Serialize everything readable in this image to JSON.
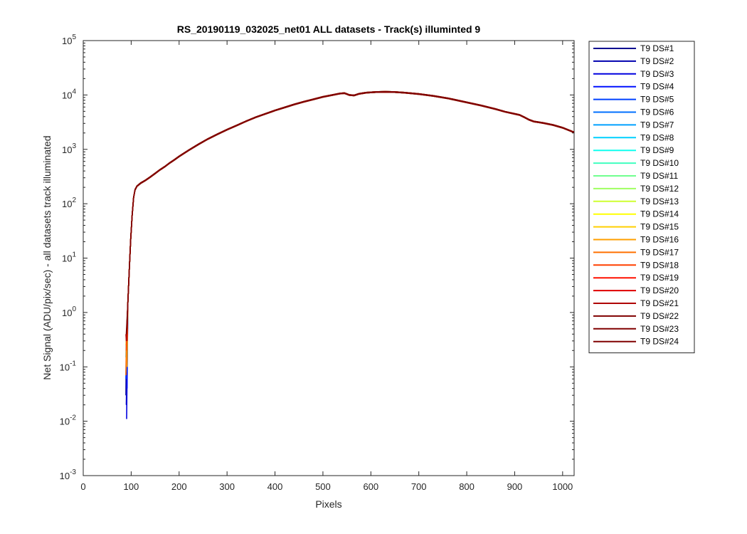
{
  "chart_data": {
    "type": "line",
    "title": "RS_20190119_032025_net01 ALL datasets - Track(s) illuminted 9",
    "xlabel": "Pixels",
    "ylabel": "Net Signal (ADU/pix/sec) - all datasets track illuminated",
    "xlim": [
      0,
      1024
    ],
    "ylim": [
      0.001,
      100000
    ],
    "yscale": "log",
    "grid": false,
    "legend_position": "outside-right",
    "x_ticks": [
      "0",
      "100",
      "200",
      "300",
      "400",
      "500",
      "600",
      "700",
      "800",
      "900",
      "1000"
    ],
    "x_tick_values": [
      0,
      100,
      200,
      300,
      400,
      500,
      600,
      700,
      800,
      900,
      1000
    ],
    "y_tick_exponents": [
      -3,
      -2,
      -1,
      0,
      1,
      2,
      3,
      4,
      5
    ],
    "y_tick_base": "10",
    "common_curve": {
      "x": [
        108,
        112,
        120,
        130,
        140,
        150,
        160,
        170,
        180,
        190,
        200,
        220,
        240,
        260,
        280,
        300,
        320,
        340,
        360,
        380,
        400,
        420,
        440,
        460,
        480,
        500,
        520,
        535,
        545,
        555,
        565,
        575,
        590,
        610,
        630,
        650,
        670,
        700,
        730,
        760,
        800,
        830,
        860,
        880,
        900,
        910,
        920,
        930,
        940,
        950,
        960,
        980,
        1000,
        1010,
        1024
      ],
      "y": [
        180,
        210,
        240,
        270,
        310,
        360,
        420,
        480,
        560,
        640,
        740,
        960,
        1230,
        1550,
        1900,
        2300,
        2750,
        3300,
        3900,
        4500,
        5200,
        5900,
        6700,
        7500,
        8300,
        9200,
        10000,
        10600,
        10800,
        10000,
        9800,
        10500,
        11000,
        11300,
        11400,
        11300,
        11000,
        10400,
        9600,
        8700,
        7300,
        6400,
        5500,
        4900,
        4500,
        4300,
        3900,
        3500,
        3250,
        3150,
        3050,
        2800,
        2500,
        2300,
        2050
      ]
    },
    "rise_segment": {
      "x": [
        90,
        93,
        96,
        99,
        102,
        105,
        108
      ],
      "y": [
        0.3,
        1.5,
        6,
        22,
        60,
        130,
        180
      ]
    },
    "series": [
      {
        "name": "T9 DS#1",
        "color": "#00008f",
        "low_start": 0.03
      },
      {
        "name": "T9 DS#2",
        "color": "#0000af",
        "low_start": 0.02
      },
      {
        "name": "T9 DS#3",
        "color": "#0000df",
        "low_start": 0.011
      },
      {
        "name": "T9 DS#4",
        "color": "#0010ff",
        "low_start": 0.04
      },
      {
        "name": "T9 DS#5",
        "color": "#0040ff",
        "low_start": 0.06
      },
      {
        "name": "T9 DS#6",
        "color": "#0070ff",
        "low_start": 0.08
      },
      {
        "name": "T9 DS#7",
        "color": "#00a0ff",
        "low_start": 0.1
      },
      {
        "name": "T9 DS#8",
        "color": "#00d0ff",
        "low_start": 0.1
      },
      {
        "name": "T9 DS#9",
        "color": "#10ffef",
        "low_start": 0.15
      },
      {
        "name": "T9 DS#10",
        "color": "#40ffbf",
        "low_start": 0.2
      },
      {
        "name": "T9 DS#11",
        "color": "#70ff8f",
        "low_start": 0.2
      },
      {
        "name": "T9 DS#12",
        "color": "#9fff60",
        "low_start": 0.25
      },
      {
        "name": "T9 DS#13",
        "color": "#cfff30",
        "low_start": 0.25
      },
      {
        "name": "T9 DS#14",
        "color": "#ffff00",
        "low_start": 0.3
      },
      {
        "name": "T9 DS#15",
        "color": "#ffcf00",
        "low_start": 0.2
      },
      {
        "name": "T9 DS#16",
        "color": "#ff9f00",
        "low_start": 0.1
      },
      {
        "name": "T9 DS#17",
        "color": "#ff7000",
        "low_start": 0.07
      },
      {
        "name": "T9 DS#18",
        "color": "#ff4000",
        "low_start": 0.2
      },
      {
        "name": "T9 DS#19",
        "color": "#ff1000",
        "low_start": 0.3
      },
      {
        "name": "T9 DS#20",
        "color": "#df0000",
        "low_start": 0.3
      },
      {
        "name": "T9 DS#21",
        "color": "#af0000",
        "low_start": 0.4
      },
      {
        "name": "T9 DS#22",
        "color": "#800000",
        "low_start": 0.4
      },
      {
        "name": "T9 DS#23",
        "color": "#800000",
        "low_start": 0.4
      },
      {
        "name": "T9 DS#24",
        "color": "#800000",
        "low_start": 0.5
      }
    ],
    "colors": {
      "axes": "#262626",
      "background": "#ffffff"
    }
  }
}
